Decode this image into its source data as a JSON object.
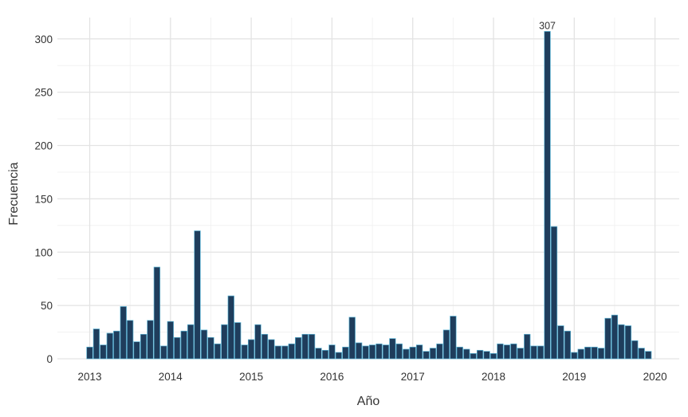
{
  "chart_data": {
    "type": "bar",
    "xlabel": "Año",
    "ylabel": "Frecuencia",
    "xlim": [
      2012.6,
      2020.3
    ],
    "ylim": [
      0,
      320
    ],
    "x_ticks": [
      2013,
      2014,
      2015,
      2016,
      2017,
      2018,
      2019,
      2020
    ],
    "y_ticks": [
      0,
      50,
      100,
      150,
      200,
      250,
      300
    ],
    "grid": true,
    "bar_color": "#1f3d5c",
    "bar_edge_color": "#5ab4d6",
    "annotations": [
      {
        "label": "307",
        "x": 2018.667,
        "y": 307
      }
    ],
    "x": [
      2013.0,
      2013.083,
      2013.167,
      2013.25,
      2013.333,
      2013.417,
      2013.5,
      2013.583,
      2013.667,
      2013.75,
      2013.833,
      2013.917,
      2014.0,
      2014.083,
      2014.167,
      2014.25,
      2014.333,
      2014.417,
      2014.5,
      2014.583,
      2014.667,
      2014.75,
      2014.833,
      2014.917,
      2015.0,
      2015.083,
      2015.167,
      2015.25,
      2015.333,
      2015.417,
      2015.5,
      2015.583,
      2015.667,
      2015.75,
      2015.833,
      2015.917,
      2016.0,
      2016.083,
      2016.167,
      2016.25,
      2016.333,
      2016.417,
      2016.5,
      2016.583,
      2016.667,
      2016.75,
      2016.833,
      2016.917,
      2017.0,
      2017.083,
      2017.167,
      2017.25,
      2017.333,
      2017.417,
      2017.5,
      2017.583,
      2017.667,
      2017.75,
      2017.833,
      2017.917,
      2018.0,
      2018.083,
      2018.167,
      2018.25,
      2018.333,
      2018.417,
      2018.5,
      2018.583,
      2018.667,
      2018.75,
      2018.833,
      2018.917,
      2019.0,
      2019.083,
      2019.167,
      2019.25,
      2019.333,
      2019.417,
      2019.5,
      2019.583,
      2019.667,
      2019.75,
      2019.833,
      2019.917
    ],
    "values": [
      11,
      28,
      13,
      24,
      26,
      49,
      36,
      16,
      23,
      36,
      86,
      12,
      35,
      20,
      26,
      32,
      120,
      27,
      20,
      14,
      32,
      59,
      34,
      13,
      18,
      32,
      23,
      18,
      12,
      12,
      14,
      20,
      23,
      23,
      10,
      8,
      13,
      6,
      11,
      39,
      15,
      12,
      13,
      14,
      13,
      19,
      14,
      9,
      11,
      13,
      7,
      10,
      14,
      27,
      40,
      11,
      9,
      5,
      8,
      7,
      5,
      14,
      13,
      14,
      10,
      23,
      12,
      12,
      307,
      124,
      31,
      26,
      6,
      9,
      11,
      11,
      10,
      38,
      41,
      32,
      31,
      17,
      10,
      7
    ]
  }
}
